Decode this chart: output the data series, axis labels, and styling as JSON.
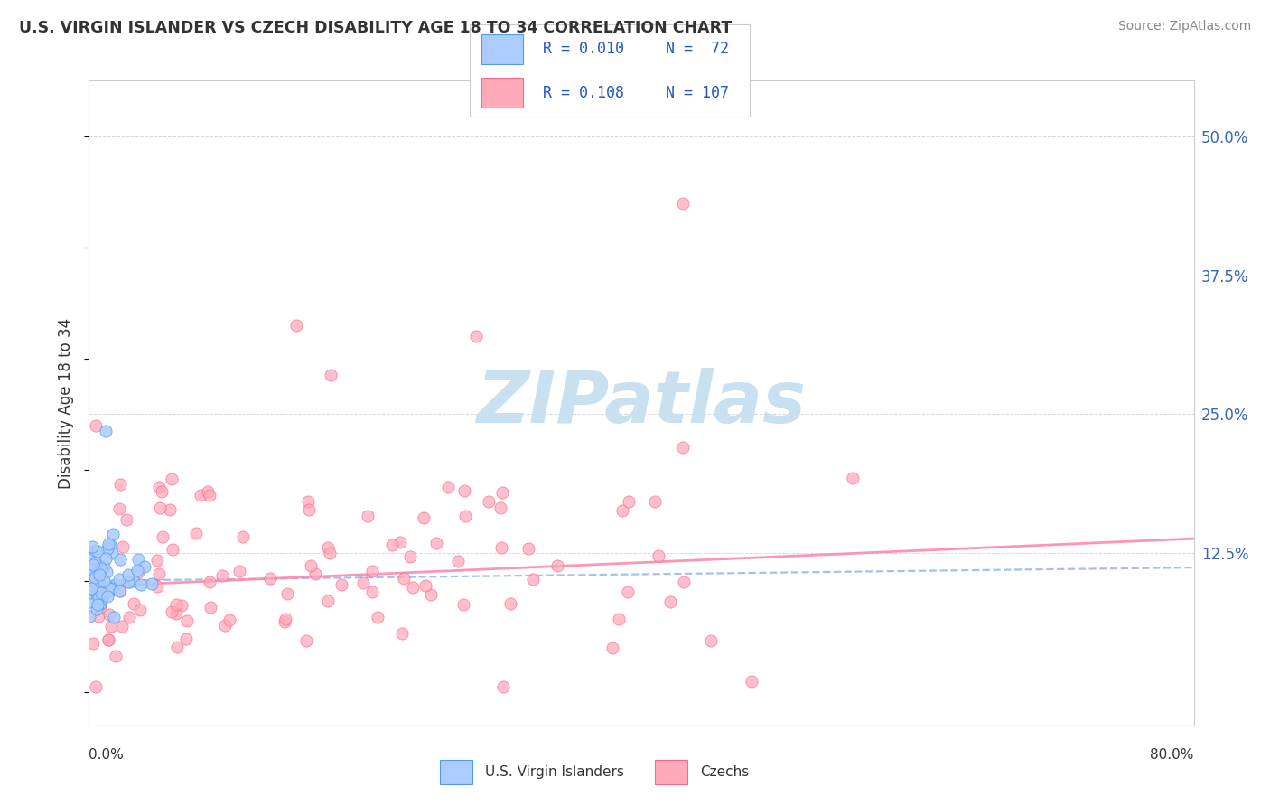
{
  "title": "U.S. VIRGIN ISLANDER VS CZECH DISABILITY AGE 18 TO 34 CORRELATION CHART",
  "source": "Source: ZipAtlas.com",
  "ylabel": "Disability Age 18 to 34",
  "xlim": [
    0.0,
    0.8
  ],
  "ylim": [
    -0.03,
    0.55
  ],
  "yticks": [
    0.0,
    0.125,
    0.25,
    0.375,
    0.5
  ],
  "ytick_labels": [
    "",
    "12.5%",
    "25.0%",
    "37.5%",
    "50.0%"
  ],
  "series": [
    {
      "name": "U.S. Virgin Islanders",
      "R": 0.01,
      "N": 72,
      "color": "#aaccff",
      "edge_color": "#5599ee",
      "line_color": "#99bbee",
      "line_style": "--",
      "trend_x": [
        0.0,
        0.8
      ],
      "trend_y": [
        0.1,
        0.112
      ]
    },
    {
      "name": "Czechs",
      "R": 0.108,
      "N": 107,
      "color": "#ffaabb",
      "edge_color": "#ff6688",
      "line_color": "#ff88aa",
      "line_style": "-",
      "trend_x": [
        0.0,
        0.8
      ],
      "trend_y": [
        0.095,
        0.138
      ]
    }
  ],
  "watermark": "ZIPatlas",
  "watermark_color": "#c8e0f0",
  "legend_R_color": "#2255cc",
  "background_color": "#ffffff",
  "grid_color": "#cccccc"
}
